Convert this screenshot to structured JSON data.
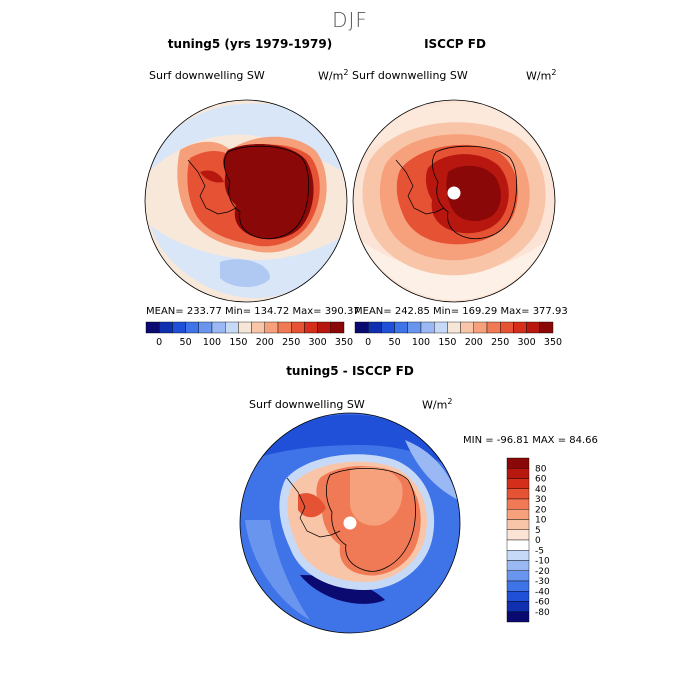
{
  "title": "DJF",
  "panels": [
    {
      "id": "model",
      "title": "tuning5 (yrs 1979-1979)",
      "variable": "Surf downwelling SW",
      "units": "W/m",
      "units_exp": "2",
      "stats": "MEAN= 233.77    Min= 134.72    Max= 390.37"
    },
    {
      "id": "obs",
      "title": "ISCCP FD",
      "variable": "Surf downwelling SW",
      "units": "W/m",
      "units_exp": "2",
      "stats": "MEAN= 242.85    Min= 169.29    Max= 377.93"
    },
    {
      "id": "diff",
      "title": "tuning5 - ISCCP FD",
      "variable": "Surf downwelling SW",
      "units": "W/m",
      "units_exp": "2",
      "stats": "MIN = -96.81  MAX =   84.66"
    }
  ],
  "colorbar_top": {
    "ticks": [
      "0",
      "50",
      "100",
      "150",
      "200",
      "250",
      "300",
      "350"
    ],
    "colors": [
      "#0a0a70",
      "#1030b0",
      "#2050d8",
      "#3f73e8",
      "#6a95ef",
      "#99b8f4",
      "#c6daf8",
      "#f6e6d8",
      "#f9c5a8",
      "#f6a07c",
      "#ef7a55",
      "#e55234",
      "#d52e1a",
      "#b8170f",
      "#8a0808"
    ]
  },
  "colorbar_diff": {
    "levels": [
      "80",
      "60",
      "40",
      "30",
      "20",
      "10",
      "5",
      "0",
      "-5",
      "-10",
      "-20",
      "-30",
      "-40",
      "-60",
      "-80"
    ],
    "colors": [
      "#8a0808",
      "#b8170f",
      "#d52e1a",
      "#e55234",
      "#ef7a55",
      "#f6a07c",
      "#f9c5a8",
      "#fbe4d6",
      "#ffffff",
      "#c6daf8",
      "#99b8f4",
      "#6a95ef",
      "#3f73e8",
      "#2050d8",
      "#1030b0",
      "#0a0a70"
    ]
  }
}
